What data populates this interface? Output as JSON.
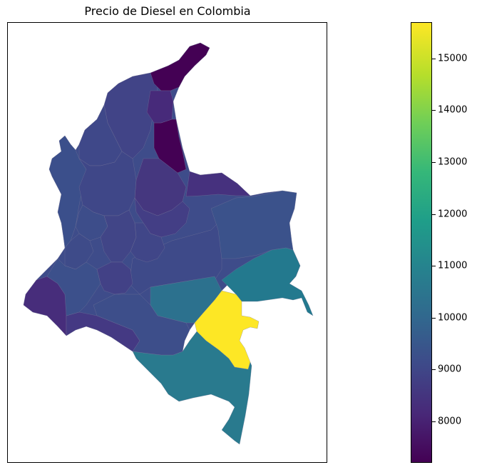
{
  "title": "Precio de Diesel en Colombia",
  "colorbar": {
    "colormap": "viridis",
    "min": 7200,
    "max": 15700,
    "ticks": [
      {
        "value": 8000,
        "label": "8000"
      },
      {
        "value": 9000,
        "label": "9000"
      },
      {
        "value": 10000,
        "label": "10000"
      },
      {
        "value": 11000,
        "label": "11000"
      },
      {
        "value": 12000,
        "label": "12000"
      },
      {
        "value": 13000,
        "label": "13000"
      },
      {
        "value": 14000,
        "label": "14000"
      },
      {
        "value": 15000,
        "label": "15000"
      }
    ]
  },
  "colors": {
    "lowest": "#440154",
    "low": "#46337e",
    "mid_low": "#3b528b",
    "mid": "#2c728e",
    "mid_high": "#21908d",
    "highest": "#fde725"
  }
}
